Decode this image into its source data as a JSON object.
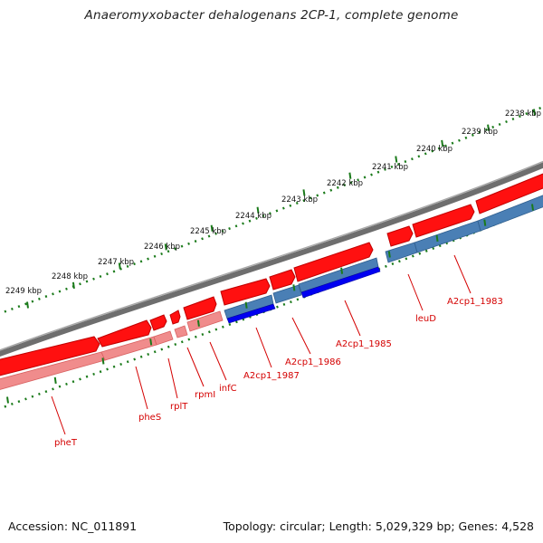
{
  "title": "Anaeromyxobacter dehalogenans 2CP-1, complete genome",
  "footer": {
    "accession": "Accession: NC_011891",
    "summary": "Topology: circular; Length: 5,029,329 bp; Genes: 4,528"
  },
  "ticks": [
    {
      "label": "2238 kbp"
    },
    {
      "label": "2239 kbp"
    },
    {
      "label": "2240 kbp"
    },
    {
      "label": "2241 kbp"
    },
    {
      "label": "2242 kbp"
    },
    {
      "label": "2243 kbp"
    },
    {
      "label": "2244 kbp"
    },
    {
      "label": "2245 kbp"
    },
    {
      "label": "2246 kbp"
    },
    {
      "label": "2247 kbp"
    },
    {
      "label": "2248 kbp"
    },
    {
      "label": "2249 kbp"
    }
  ],
  "gene_labels": [
    {
      "text": "pheT",
      "color": "#d40000"
    },
    {
      "text": "pheS",
      "color": "#d40000"
    },
    {
      "text": "rplT",
      "color": "#d40000"
    },
    {
      "text": "rpmI",
      "color": "#d40000"
    },
    {
      "text": "infC",
      "color": "#d40000"
    },
    {
      "text": "A2cp1_1987",
      "color": "#d40000"
    },
    {
      "text": "A2cp1_1986",
      "color": "#d40000"
    },
    {
      "text": "A2cp1_1985",
      "color": "#d40000"
    },
    {
      "text": "leuD",
      "color": "#d40000"
    },
    {
      "text": "A2cp1_1983",
      "color": "#d40000"
    }
  ],
  "colors": {
    "backbone": "#808080",
    "gene_forward": "#ff0000",
    "gene_forward_light": "#f08080",
    "cds_blue": "#4682b4",
    "cds_dark_blue": "#0000ff",
    "tick_green": "#1a7a1a"
  }
}
